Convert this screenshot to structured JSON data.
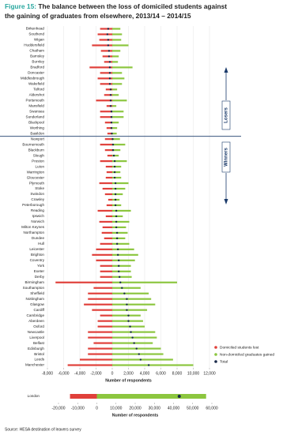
{
  "chart_data": [
    {
      "type": "bar",
      "orientation": "horizontal",
      "figure_label": "Figure 15:",
      "title_line1": "The balance between the loss of domiciled students against",
      "title_line2": "the gaining of graduates from elsewhere, 2013/14 – 2014/15",
      "categories": [
        "Birkenhead",
        "Southend",
        "Wigan",
        "Huddersfield",
        "Chatham",
        "Barnsley",
        "Burnley",
        "Bradford",
        "Doncaster",
        "Middlesbrough",
        "Wakefield",
        "Telford",
        "Aldershot",
        "Portsmouth",
        "Mansfield",
        "Swansea",
        "Sunderland",
        "Blackpool",
        "Worthing",
        "Basildon",
        "Newport",
        "Bournemouth",
        "Blackburn",
        "Slough",
        "Preston",
        "Luton",
        "Warrington",
        "Gloucester",
        "Plymouth",
        "Stoke",
        "Swindon",
        "Crawley",
        "Peterborough",
        "Reading",
        "Ipswich",
        "Norwich",
        "Milton Keynes",
        "Northampton",
        "Dundee",
        "Hull",
        "Leicester",
        "Brighton",
        "Coventry",
        "York",
        "Exeter",
        "Derby",
        "Birmingham",
        "Southampton",
        "Sheffield",
        "Nottingham",
        "Glasgow",
        "Cardiff",
        "Cambridge",
        "Aberdeen",
        "Oxford",
        "Newcastle",
        "Liverpool",
        "Belfast",
        "Edinburgh",
        "Bristol",
        "Leeds",
        "Manchester"
      ],
      "series": [
        {
          "name": "Domiciled students lost",
          "color": "#e0403a",
          "kind": "bar",
          "values": [
            -1500,
            -1800,
            -1600,
            -2500,
            -1400,
            -1200,
            -1000,
            -2800,
            -1500,
            -1800,
            -1500,
            -800,
            -1000,
            -2000,
            -700,
            -1500,
            -1500,
            -900,
            -700,
            -600,
            -900,
            -1500,
            -900,
            -600,
            -1500,
            -800,
            -700,
            -800,
            -1600,
            -1200,
            -900,
            -500,
            -700,
            -1800,
            -800,
            -1600,
            -1200,
            -1300,
            -1000,
            -1500,
            -2000,
            -2500,
            -2000,
            -1500,
            -1500,
            -1500,
            -7000,
            -2300,
            -3000,
            -3000,
            -3500,
            -2500,
            -1500,
            -1800,
            -1800,
            -3000,
            -3000,
            -2300,
            -3000,
            -3000,
            -4000,
            -5500
          ]
        },
        {
          "name": "Non-domiciled graduates gained",
          "color": "#8cc63f",
          "kind": "bar",
          "values": [
            1000,
            1200,
            1100,
            2000,
            1000,
            800,
            700,
            2500,
            1200,
            1500,
            1200,
            600,
            800,
            1800,
            500,
            1400,
            1400,
            800,
            600,
            550,
            950,
            1600,
            1000,
            800,
            1800,
            1100,
            1000,
            1100,
            2000,
            1600,
            1300,
            900,
            1100,
            2300,
            1300,
            2100,
            1700,
            1900,
            1600,
            2100,
            2700,
            3200,
            2800,
            2300,
            2300,
            2400,
            8000,
            3500,
            4500,
            4800,
            5300,
            4300,
            3500,
            3800,
            4000,
            5300,
            5500,
            5000,
            6000,
            6300,
            7500,
            10000
          ]
        },
        {
          "name": "Total",
          "color": "#1a2a4a",
          "kind": "dot",
          "values": [
            -500,
            -600,
            -500,
            -500,
            -400,
            -400,
            -300,
            -300,
            -300,
            -300,
            -300,
            -200,
            -200,
            -200,
            -200,
            -100,
            -100,
            -100,
            -100,
            -50,
            50,
            100,
            100,
            200,
            300,
            300,
            300,
            300,
            400,
            400,
            400,
            400,
            400,
            500,
            500,
            500,
            500,
            600,
            600,
            600,
            700,
            700,
            800,
            800,
            800,
            900,
            1000,
            1200,
            1500,
            1800,
            1800,
            1800,
            2000,
            2000,
            2200,
            2300,
            2500,
            2700,
            3000,
            3300,
            3500,
            4500
          ]
        }
      ],
      "xlim": [
        -8000,
        12000
      ],
      "xticks": [
        {
          "value": -8000,
          "label": "-8,000"
        },
        {
          "value": -6000,
          "label": "-6,000"
        },
        {
          "value": -4000,
          "label": "-4,000"
        },
        {
          "value": -2000,
          "label": "-2,000"
        },
        0,
        {
          "value": 2000,
          "label": "2,000"
        },
        {
          "value": 4000,
          "label": "4,000"
        },
        {
          "value": 6000,
          "label": "6,000"
        },
        {
          "value": 8000,
          "label": "8,000"
        },
        {
          "value": 10000,
          "label": "10,000"
        },
        {
          "value": 12000,
          "label": "12,000"
        }
      ],
      "xlabel": "Number of respondents",
      "grid": true,
      "divider_after": "Basildon",
      "annotations": [
        "Losers",
        "Winners"
      ],
      "legend": "lower right"
    },
    {
      "type": "bar",
      "orientation": "horizontal",
      "categories": [
        "London"
      ],
      "series": [
        {
          "color": "#e0403a",
          "kind": "bar",
          "values": [
            -14000
          ]
        },
        {
          "color": "#8cc63f",
          "kind": "bar",
          "values": [
            57000
          ]
        },
        {
          "color": "#1a2a4a",
          "kind": "dot",
          "values": [
            43000
          ]
        }
      ],
      "xlim": [
        -20000,
        60000
      ],
      "xticks": [
        {
          "value": -20000,
          "label": "-20,000"
        },
        {
          "value": -10000,
          "label": "-10,000"
        },
        0,
        {
          "value": 10000,
          "label": "10,000"
        },
        {
          "value": 20000,
          "label": "20,000"
        },
        {
          "value": 30000,
          "label": "30,000"
        },
        {
          "value": 40000,
          "label": "40,000"
        },
        {
          "value": 50000,
          "label": "50,000"
        },
        {
          "value": 60000,
          "label": "60,000"
        }
      ],
      "xlabel": "Number of respondents",
      "source": "Source: HESA destination of leavers survey"
    }
  ]
}
